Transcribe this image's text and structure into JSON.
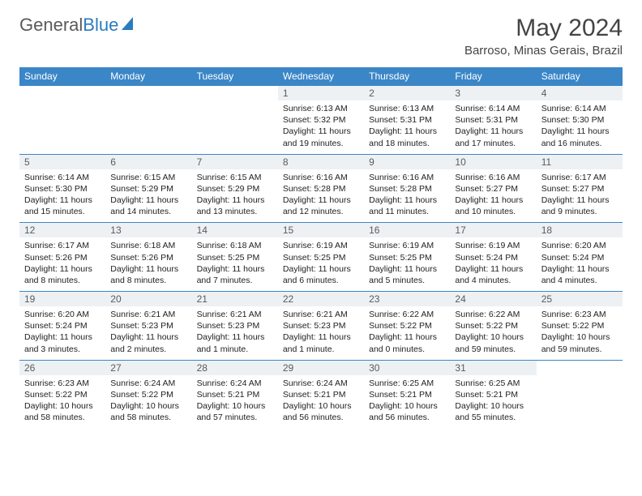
{
  "logo": {
    "text1": "General",
    "text2": "Blue"
  },
  "title": "May 2024",
  "location": "Barroso, Minas Gerais, Brazil",
  "colors": {
    "header_bg": "#3b86c7",
    "header_text": "#ffffff",
    "daynum_bg": "#eef1f3",
    "logo_blue": "#2b7bbf",
    "text": "#212121"
  },
  "weekdays": [
    "Sunday",
    "Monday",
    "Tuesday",
    "Wednesday",
    "Thursday",
    "Friday",
    "Saturday"
  ],
  "weeks": [
    [
      {
        "day": "",
        "empty": true
      },
      {
        "day": "",
        "empty": true
      },
      {
        "day": "",
        "empty": true
      },
      {
        "day": "1",
        "sunrise": "Sunrise: 6:13 AM",
        "sunset": "Sunset: 5:32 PM",
        "daylight": "Daylight: 11 hours and 19 minutes."
      },
      {
        "day": "2",
        "sunrise": "Sunrise: 6:13 AM",
        "sunset": "Sunset: 5:31 PM",
        "daylight": "Daylight: 11 hours and 18 minutes."
      },
      {
        "day": "3",
        "sunrise": "Sunrise: 6:14 AM",
        "sunset": "Sunset: 5:31 PM",
        "daylight": "Daylight: 11 hours and 17 minutes."
      },
      {
        "day": "4",
        "sunrise": "Sunrise: 6:14 AM",
        "sunset": "Sunset: 5:30 PM",
        "daylight": "Daylight: 11 hours and 16 minutes."
      }
    ],
    [
      {
        "day": "5",
        "sunrise": "Sunrise: 6:14 AM",
        "sunset": "Sunset: 5:30 PM",
        "daylight": "Daylight: 11 hours and 15 minutes."
      },
      {
        "day": "6",
        "sunrise": "Sunrise: 6:15 AM",
        "sunset": "Sunset: 5:29 PM",
        "daylight": "Daylight: 11 hours and 14 minutes."
      },
      {
        "day": "7",
        "sunrise": "Sunrise: 6:15 AM",
        "sunset": "Sunset: 5:29 PM",
        "daylight": "Daylight: 11 hours and 13 minutes."
      },
      {
        "day": "8",
        "sunrise": "Sunrise: 6:16 AM",
        "sunset": "Sunset: 5:28 PM",
        "daylight": "Daylight: 11 hours and 12 minutes."
      },
      {
        "day": "9",
        "sunrise": "Sunrise: 6:16 AM",
        "sunset": "Sunset: 5:28 PM",
        "daylight": "Daylight: 11 hours and 11 minutes."
      },
      {
        "day": "10",
        "sunrise": "Sunrise: 6:16 AM",
        "sunset": "Sunset: 5:27 PM",
        "daylight": "Daylight: 11 hours and 10 minutes."
      },
      {
        "day": "11",
        "sunrise": "Sunrise: 6:17 AM",
        "sunset": "Sunset: 5:27 PM",
        "daylight": "Daylight: 11 hours and 9 minutes."
      }
    ],
    [
      {
        "day": "12",
        "sunrise": "Sunrise: 6:17 AM",
        "sunset": "Sunset: 5:26 PM",
        "daylight": "Daylight: 11 hours and 8 minutes."
      },
      {
        "day": "13",
        "sunrise": "Sunrise: 6:18 AM",
        "sunset": "Sunset: 5:26 PM",
        "daylight": "Daylight: 11 hours and 8 minutes."
      },
      {
        "day": "14",
        "sunrise": "Sunrise: 6:18 AM",
        "sunset": "Sunset: 5:25 PM",
        "daylight": "Daylight: 11 hours and 7 minutes."
      },
      {
        "day": "15",
        "sunrise": "Sunrise: 6:19 AM",
        "sunset": "Sunset: 5:25 PM",
        "daylight": "Daylight: 11 hours and 6 minutes."
      },
      {
        "day": "16",
        "sunrise": "Sunrise: 6:19 AM",
        "sunset": "Sunset: 5:25 PM",
        "daylight": "Daylight: 11 hours and 5 minutes."
      },
      {
        "day": "17",
        "sunrise": "Sunrise: 6:19 AM",
        "sunset": "Sunset: 5:24 PM",
        "daylight": "Daylight: 11 hours and 4 minutes."
      },
      {
        "day": "18",
        "sunrise": "Sunrise: 6:20 AM",
        "sunset": "Sunset: 5:24 PM",
        "daylight": "Daylight: 11 hours and 4 minutes."
      }
    ],
    [
      {
        "day": "19",
        "sunrise": "Sunrise: 6:20 AM",
        "sunset": "Sunset: 5:24 PM",
        "daylight": "Daylight: 11 hours and 3 minutes."
      },
      {
        "day": "20",
        "sunrise": "Sunrise: 6:21 AM",
        "sunset": "Sunset: 5:23 PM",
        "daylight": "Daylight: 11 hours and 2 minutes."
      },
      {
        "day": "21",
        "sunrise": "Sunrise: 6:21 AM",
        "sunset": "Sunset: 5:23 PM",
        "daylight": "Daylight: 11 hours and 1 minute."
      },
      {
        "day": "22",
        "sunrise": "Sunrise: 6:21 AM",
        "sunset": "Sunset: 5:23 PM",
        "daylight": "Daylight: 11 hours and 1 minute."
      },
      {
        "day": "23",
        "sunrise": "Sunrise: 6:22 AM",
        "sunset": "Sunset: 5:22 PM",
        "daylight": "Daylight: 11 hours and 0 minutes."
      },
      {
        "day": "24",
        "sunrise": "Sunrise: 6:22 AM",
        "sunset": "Sunset: 5:22 PM",
        "daylight": "Daylight: 10 hours and 59 minutes."
      },
      {
        "day": "25",
        "sunrise": "Sunrise: 6:23 AM",
        "sunset": "Sunset: 5:22 PM",
        "daylight": "Daylight: 10 hours and 59 minutes."
      }
    ],
    [
      {
        "day": "26",
        "sunrise": "Sunrise: 6:23 AM",
        "sunset": "Sunset: 5:22 PM",
        "daylight": "Daylight: 10 hours and 58 minutes."
      },
      {
        "day": "27",
        "sunrise": "Sunrise: 6:24 AM",
        "sunset": "Sunset: 5:22 PM",
        "daylight": "Daylight: 10 hours and 58 minutes."
      },
      {
        "day": "28",
        "sunrise": "Sunrise: 6:24 AM",
        "sunset": "Sunset: 5:21 PM",
        "daylight": "Daylight: 10 hours and 57 minutes."
      },
      {
        "day": "29",
        "sunrise": "Sunrise: 6:24 AM",
        "sunset": "Sunset: 5:21 PM",
        "daylight": "Daylight: 10 hours and 56 minutes."
      },
      {
        "day": "30",
        "sunrise": "Sunrise: 6:25 AM",
        "sunset": "Sunset: 5:21 PM",
        "daylight": "Daylight: 10 hours and 56 minutes."
      },
      {
        "day": "31",
        "sunrise": "Sunrise: 6:25 AM",
        "sunset": "Sunset: 5:21 PM",
        "daylight": "Daylight: 10 hours and 55 minutes."
      },
      {
        "day": "",
        "empty": true
      }
    ]
  ]
}
